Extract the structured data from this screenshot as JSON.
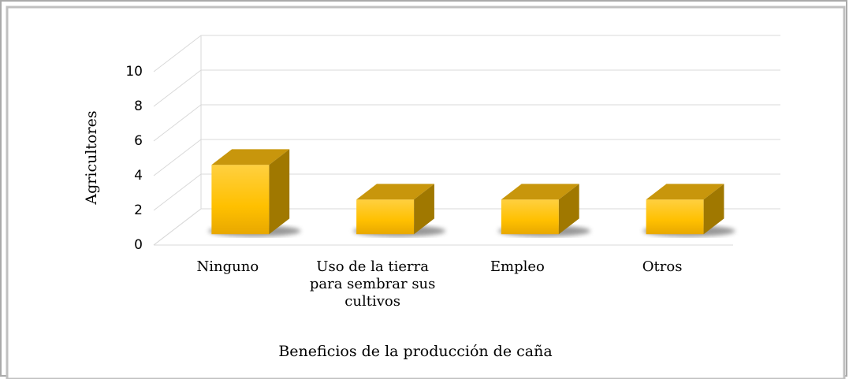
{
  "chart_data": {
    "type": "bar3d",
    "x_label": "Beneficios de la producción de caña",
    "y_label": "Agricultores",
    "categories": [
      "Ninguno",
      "Uso de la tierra para sembrar sus cultivos",
      "Empleo",
      "Otros"
    ],
    "values": [
      4,
      2,
      2,
      2
    ],
    "color": "#ffc000",
    "ylim": [
      0,
      10
    ],
    "yticks": [
      0,
      2,
      4,
      6,
      8,
      10
    ],
    "grid": true
  }
}
